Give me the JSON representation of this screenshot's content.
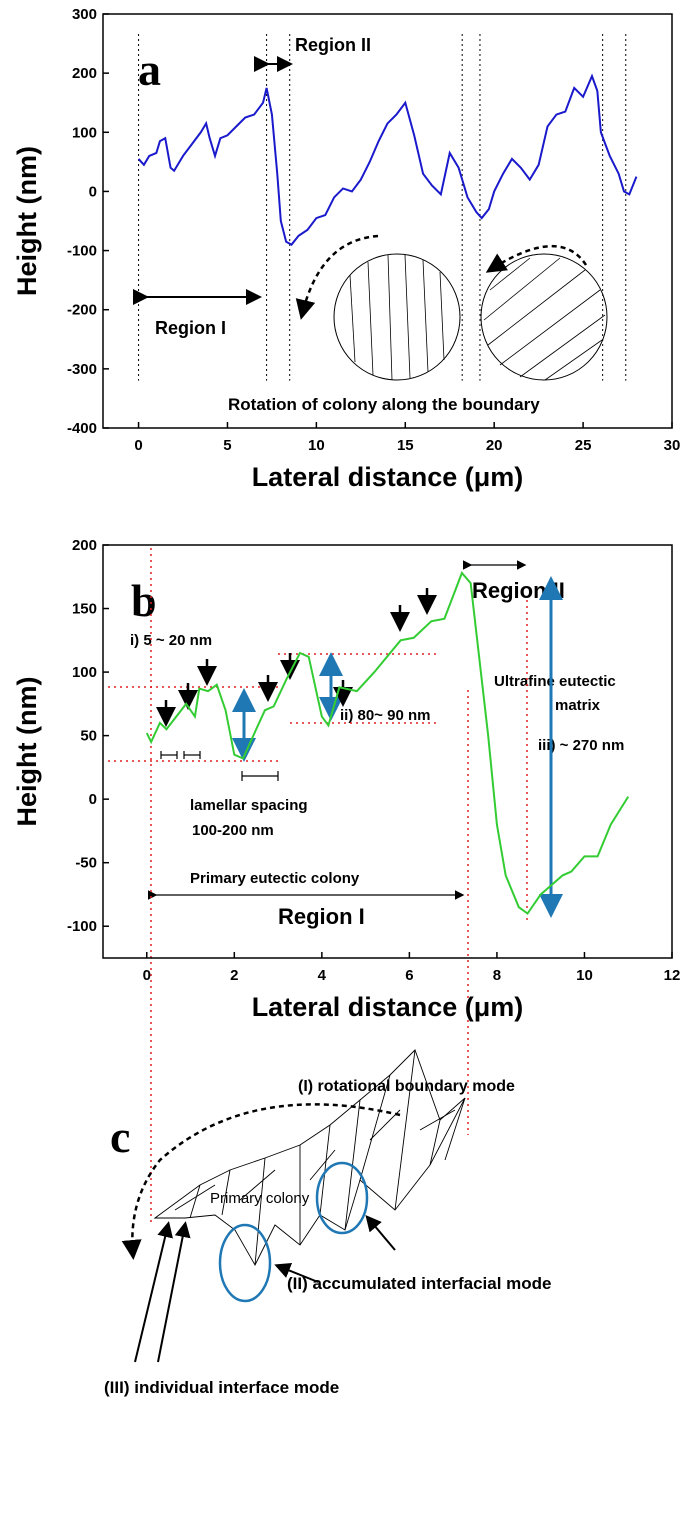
{
  "chart_data": [
    {
      "type": "line",
      "ylabel": "Height (nm)",
      "xlabel": "Lateral distance (μm)",
      "xlim": [
        -2,
        30
      ],
      "ylim": [
        -400,
        300
      ],
      "xticks": [
        0,
        5,
        10,
        15,
        20,
        25,
        30
      ],
      "yticks": [
        -400,
        -300,
        -200,
        -100,
        0,
        100,
        200,
        300
      ],
      "boundaries": [
        0,
        7.2,
        8.5,
        18.2,
        19.2,
        26.1,
        27.4
      ],
      "annotations": [
        "a",
        "Region II",
        "Region I",
        "Rotation of colony along the boundary"
      ],
      "series": [
        {
          "color": "#1a1acc",
          "x": [
            0,
            0.3,
            0.6,
            1,
            1.2,
            1.5,
            1.8,
            2,
            2.5,
            3,
            3.5,
            3.8,
            4,
            4.3,
            4.6,
            5,
            5.5,
            6,
            6.5,
            7,
            7.2,
            7.5,
            7.8,
            8,
            8.3,
            8.6,
            9,
            9.5,
            10,
            10.5,
            11,
            11.5,
            12,
            12.5,
            13,
            13.5,
            14,
            14.5,
            15,
            15.5,
            16,
            16.5,
            17,
            17.5,
            18,
            18.5,
            19,
            19.3,
            19.7,
            20,
            20.5,
            21,
            21.5,
            22,
            22.5,
            23,
            23.5,
            24,
            24.5,
            25,
            25.5,
            25.8,
            26,
            26.5,
            27,
            27.3,
            27.6,
            28
          ],
          "values": [
            55,
            45,
            60,
            65,
            85,
            90,
            40,
            35,
            60,
            80,
            100,
            115,
            90,
            60,
            90,
            95,
            110,
            125,
            130,
            150,
            175,
            130,
            30,
            -50,
            -85,
            -90,
            -75,
            -65,
            -45,
            -40,
            -10,
            5,
            0,
            20,
            50,
            85,
            115,
            130,
            150,
            95,
            30,
            10,
            -5,
            65,
            40,
            -10,
            -35,
            -45,
            -30,
            0,
            30,
            55,
            40,
            20,
            45,
            110,
            130,
            135,
            175,
            160,
            195,
            170,
            100,
            60,
            30,
            0,
            -5,
            25
          ]
        }
      ]
    },
    {
      "type": "line",
      "ylabel": "Height (nm)",
      "xlabel": "Lateral distance (μm)",
      "xlim": [
        -1,
        12
      ],
      "ylim": [
        -125,
        200
      ],
      "xticks": [
        0,
        2,
        4,
        6,
        8,
        10,
        12
      ],
      "yticks": [
        -100,
        -50,
        0,
        50,
        100,
        150,
        200
      ],
      "annotations": [
        "b",
        "Region II",
        "Ultrafine eutectic",
        "matrix",
        "i) 5 ~ 20 nm",
        "ii) 80~ 90 nm",
        "iii) ~ 270 nm",
        "lamellar spacing",
        "100-200 nm",
        "Primary eutectic colony",
        "Region I"
      ],
      "series": [
        {
          "color": "#33cc33",
          "x": [
            0,
            0.1,
            0.3,
            0.45,
            0.9,
            1.1,
            1.2,
            1.4,
            1.6,
            1.8,
            2,
            2.2,
            2.5,
            2.7,
            2.9,
            3.2,
            3.5,
            3.7,
            4,
            4.15,
            4.4,
            4.8,
            5.2,
            5.8,
            6.1,
            6.5,
            6.8,
            7,
            7.2,
            7.4,
            7.6,
            7.8,
            8,
            8.2,
            8.5,
            8.7,
            9,
            9.5,
            9.7,
            10,
            10.3,
            10.6,
            11
          ],
          "values": [
            52,
            45,
            60,
            55,
            75,
            65,
            87,
            85,
            90,
            70,
            35,
            32,
            55,
            70,
            73,
            95,
            115,
            112,
            65,
            58,
            88,
            85,
            100,
            125,
            127,
            140,
            142,
            160,
            178,
            170,
            110,
            50,
            -20,
            -60,
            -85,
            -90,
            -75,
            -60,
            -57,
            -45,
            -45,
            -20,
            2
          ]
        }
      ]
    }
  ],
  "diagram": {
    "panel": "c",
    "labels": [
      "(I) rotational boundary mode",
      "Primary colony",
      "(II) accumulated interfacial mode",
      "(III) individual interface mode"
    ]
  }
}
